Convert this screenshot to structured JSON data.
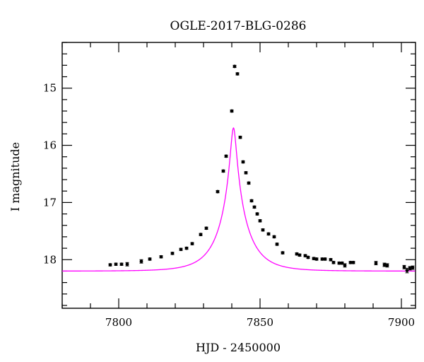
{
  "chart_data": {
    "type": "scatter",
    "title": "OGLE-2017-BLG-0286",
    "xlabel": "HJD - 2450000",
    "ylabel": "I magnitude",
    "xlim": [
      7780,
      7905
    ],
    "ylim": [
      18.85,
      14.2
    ],
    "y_inverted": true,
    "x_ticks": [
      7800,
      7850,
      7900
    ],
    "x_tick_labels": [
      "7800",
      "7850",
      "7900"
    ],
    "y_ticks": [
      15,
      16,
      17,
      18
    ],
    "y_tick_labels": [
      "15",
      "16",
      "17",
      "18"
    ],
    "grid": false,
    "colors": {
      "model": "#ff00ff",
      "points": "#000000"
    },
    "series": [
      {
        "type": "scatter",
        "x": [
          7797,
          7799,
          7801,
          7803,
          7808,
          7811,
          7815,
          7819,
          7822,
          7824,
          7826,
          7829,
          7831,
          7835,
          7837,
          7838,
          7840,
          7841,
          7842,
          7843,
          7844,
          7845,
          7846,
          7847,
          7848,
          7849,
          7850,
          7851,
          7853,
          7855,
          7856,
          7858,
          7863,
          7864,
          7866,
          7867,
          7869,
          7870,
          7872,
          7873,
          7875,
          7876,
          7878,
          7879,
          7880,
          7882,
          7883,
          7891,
          7894,
          7895,
          7901,
          7902,
          7903,
          7904
        ],
        "y": [
          18.09,
          18.08,
          18.08,
          18.08,
          18.03,
          17.99,
          17.95,
          17.89,
          17.82,
          17.8,
          17.72,
          17.56,
          17.45,
          16.81,
          16.45,
          16.19,
          15.4,
          14.62,
          14.75,
          15.86,
          16.29,
          16.48,
          16.66,
          16.97,
          17.08,
          17.2,
          17.32,
          17.48,
          17.55,
          17.6,
          17.73,
          17.88,
          17.9,
          17.92,
          17.93,
          17.96,
          17.98,
          17.99,
          17.99,
          17.99,
          18.0,
          18.05,
          18.06,
          18.06,
          18.1,
          18.05,
          18.05,
          18.06,
          18.09,
          18.1,
          18.13,
          18.19,
          18.15,
          18.14
        ],
        "err": [
          0.02,
          0.02,
          0.02,
          0.03,
          0.03,
          0.02,
          0.02,
          0.02,
          0.02,
          0.02,
          0.02,
          0.02,
          0.02,
          0.02,
          0.02,
          0.02,
          0.02,
          0.02,
          0.02,
          0.02,
          0.02,
          0.02,
          0.02,
          0.02,
          0.02,
          0.02,
          0.02,
          0.02,
          0.02,
          0.02,
          0.02,
          0.02,
          0.02,
          0.02,
          0.02,
          0.02,
          0.02,
          0.02,
          0.02,
          0.02,
          0.02,
          0.02,
          0.02,
          0.02,
          0.03,
          0.02,
          0.02,
          0.03,
          0.03,
          0.03,
          0.03,
          0.04,
          0.03,
          0.03
        ]
      },
      {
        "type": "line",
        "model": "point-lens",
        "t0": 7840.6,
        "u0": 0.1,
        "tE": 9.6,
        "baseline": 18.2
      }
    ]
  }
}
